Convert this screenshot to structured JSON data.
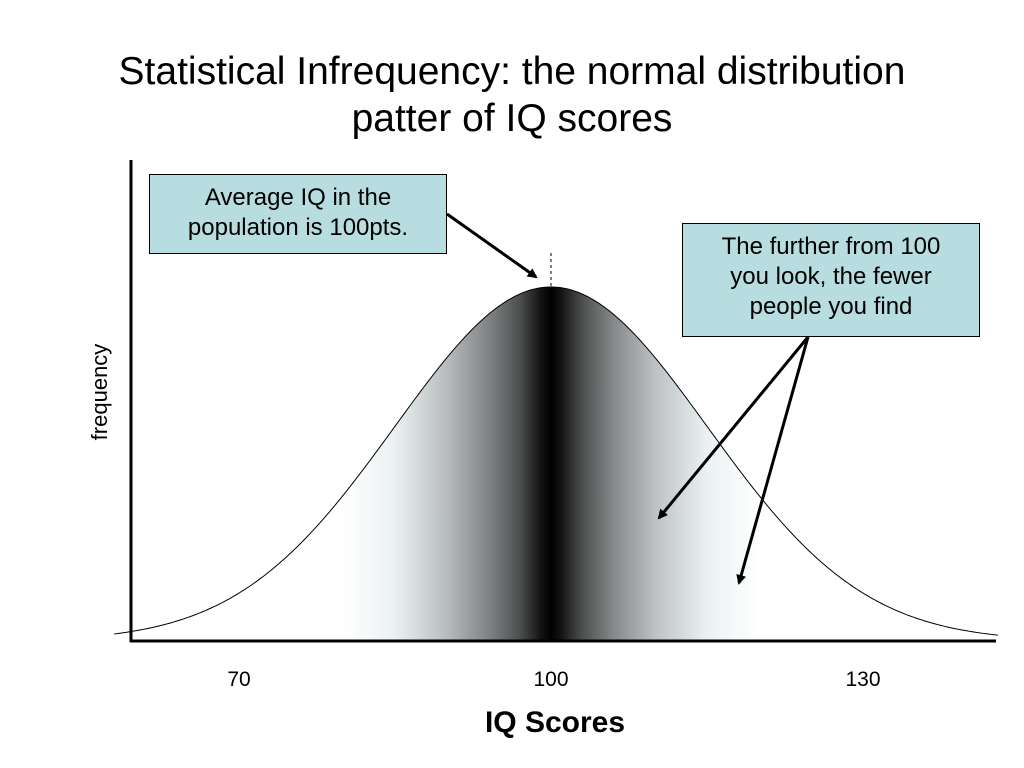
{
  "chart_data": {
    "type": "area",
    "title": [
      "Statistical Infrequency: the normal distribution",
      "patter of IQ scores"
    ],
    "xlabel": "IQ Scores",
    "ylabel": "frequency",
    "x_ticks": [
      70,
      100,
      130
    ],
    "distribution": "normal",
    "mean": 100,
    "sd": 15,
    "xlim": [
      58,
      143
    ],
    "annotations": [
      {
        "id": "average",
        "lines": [
          "Average IQ in the",
          "population is 100pts."
        ]
      },
      {
        "id": "further",
        "lines": [
          "The further from 100",
          "you look, the fewer",
          "people you find"
        ]
      }
    ],
    "grid": false,
    "legend": "none"
  },
  "colors": {
    "callout_fill": "#b7dde0",
    "curve_peak": "#000000",
    "curve_tail": "#ffffff"
  }
}
